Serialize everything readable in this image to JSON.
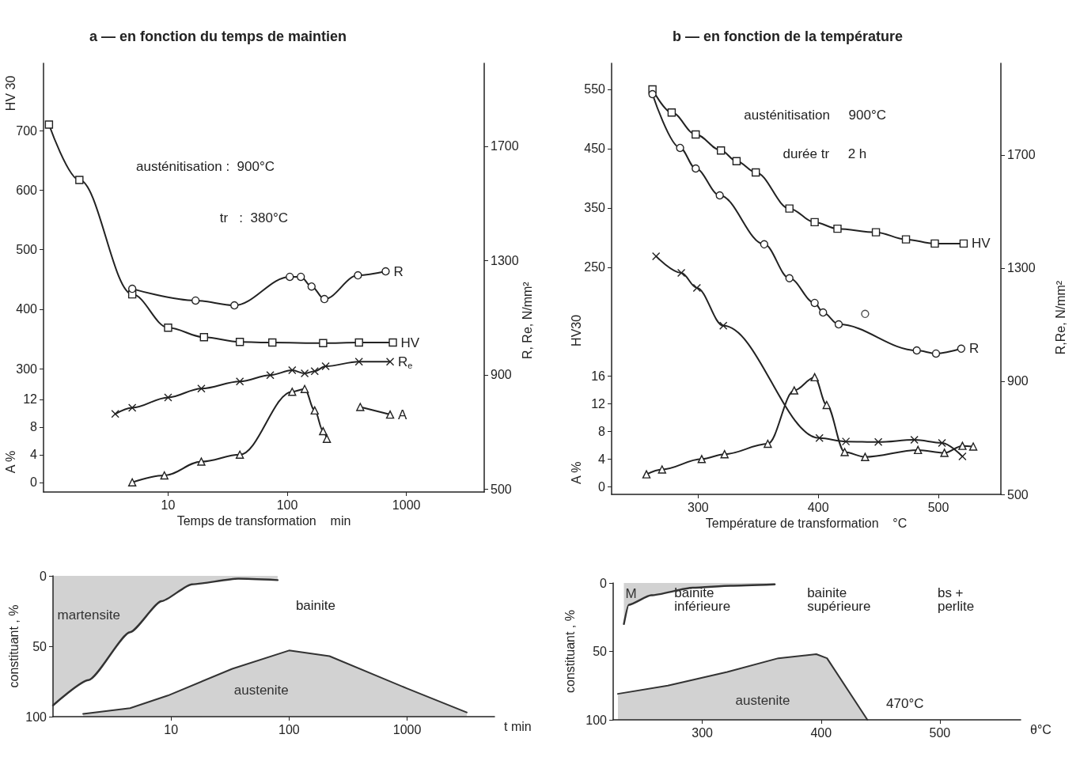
{
  "chart_data": [
    {
      "type": "line",
      "title": "a — en fonction du temps de maintien",
      "xlabel": "Temps de transformation    min",
      "ylabel": "HV 30",
      "y2label": "R, Re, N/mm²",
      "y3label": "A %",
      "annotations": [
        "austénitisation :  900°C",
        "tr   :  380°C"
      ],
      "log": "x",
      "xlim": [
        0.9,
        4500
      ],
      "xticks": [
        10,
        100,
        1000
      ],
      "ylim": [
        93,
        813
      ],
      "yticks": [
        300,
        400,
        500,
        600,
        700
      ],
      "y2lim": [
        490,
        1990
      ],
      "y2ticks": [
        500,
        900,
        1300,
        1700
      ],
      "y3lim": [
        -1.4,
        60.6
      ],
      "y3ticks": [
        0,
        4,
        8,
        12
      ],
      "series": [
        {
          "name": "HV",
          "color": "#222222",
          "marker": "square",
          "x": [
            1,
            1.8,
            5,
            10,
            20,
            40,
            75,
            200,
            400,
            770
          ],
          "values": [
            710,
            617,
            425,
            369,
            353,
            345,
            344,
            343,
            344,
            344
          ]
        },
        {
          "name": "R",
          "color": "#222222",
          "marker": "circle",
          "axis": "y2",
          "x": [
            5,
            17,
            36,
            105,
            130,
            160,
            205,
            392,
            670
          ],
          "values": [
            1201,
            1160,
            1143,
            1243,
            1243,
            1209,
            1165,
            1248,
            1262
          ]
        },
        {
          "name": "R$_{e}$",
          "color": "#222222",
          "marker": "cross",
          "axis": "y2",
          "x": [
            3.6,
            5,
            10,
            19,
            40,
            72,
            110,
            140,
            170,
            210,
            400,
            730
          ],
          "values": [
            763,
            785,
            821,
            852,
            877,
            899,
            916,
            905,
            913,
            930,
            946,
            946
          ]
        },
        {
          "name": "A",
          "color": "#222222",
          "marker": "triangle",
          "axis": "y3",
          "x": [
            5,
            9.3,
            19,
            40,
            110,
            140,
            170,
            200,
            215,
            300,
            410,
            730
          ],
          "values": [
            0,
            1,
            3,
            4,
            13.1,
            13.5,
            10.4,
            7.4,
            6.3,
            null,
            10.9,
            9.8
          ]
        }
      ]
    },
    {
      "type": "line",
      "title": "b — en fonction de la température",
      "xlabel": "Température de transformation    °C",
      "ylabel": "HV30",
      "y2label": "R,Re, N/mm²",
      "y3label": "A %",
      "annotations": [
        "austénitisation     900°C",
        "durée tr     2 h"
      ],
      "xlim": [
        228,
        552
      ],
      "xticks": [
        300,
        400,
        500
      ],
      "ylim": [
        -133,
        594
      ],
      "yticks": [
        250,
        350,
        450,
        550
      ],
      "y2lim": [
        500,
        2024
      ],
      "y2ticks": [
        500,
        900,
        1300,
        1700
      ],
      "y3lim": [
        -1.1,
        61.1
      ],
      "y3ticks": [
        0,
        4,
        8,
        12,
        16
      ],
      "series": [
        {
          "name": "HV",
          "color": "#222222",
          "marker": "square",
          "x": [
            262,
            278,
            298,
            319,
            332,
            348,
            376,
            397,
            416,
            448,
            473,
            497,
            521
          ],
          "values": [
            550,
            511,
            474,
            447,
            429,
            410,
            349,
            326,
            315,
            309,
            297,
            290,
            290
          ]
        },
        {
          "name": "R",
          "color": "#222222",
          "marker": "circle",
          "axis": "y2",
          "x": [
            262,
            285,
            298,
            318,
            355,
            376,
            397,
            404,
            417,
            482,
            498,
            519
          ],
          "values": [
            1915,
            1725,
            1652,
            1557,
            1384,
            1264,
            1177,
            1143,
            1101,
            1009,
            998,
            1015
          ]
        },
        {
          "type": "scatter",
          "color": "#222222",
          "marker": "circle",
          "axis": "y2",
          "x": [
            439
          ],
          "values": [
            1138
          ]
        },
        {
          "color": "#222222",
          "marker": "cross",
          "axis": "y2",
          "x": [
            265,
            286,
            299,
            321,
            401,
            423,
            450,
            480,
            503,
            520
          ],
          "values": [
            1342,
            1283,
            1230,
            1096,
            699,
            687,
            685,
            693,
            682,
            634
          ]
        },
        {
          "color": "#222222",
          "marker": "triangle",
          "axis": "y3",
          "x": [
            257,
            270,
            303,
            322,
            358,
            380,
            397,
            407,
            422,
            439,
            483,
            505,
            520,
            529
          ],
          "values": [
            1.8,
            2.5,
            4.0,
            4.7,
            6.2,
            13.9,
            15.8,
            11.8,
            5.0,
            4.3,
            5.3,
            4.9,
            5.9,
            5.8
          ]
        }
      ]
    },
    {
      "type": "area",
      "xlabel": "t min",
      "ylabel": "constituant , %",
      "annotations": [
        "bainite"
      ],
      "log": "x",
      "xlim": [
        1,
        5500
      ],
      "xticks": [
        10,
        100,
        1000
      ],
      "ylim": [
        100,
        0
      ],
      "yticks": [
        0,
        50,
        100
      ],
      "marker": "none",
      "series": [
        {
          "name": "martensite",
          "color": "#333333",
          "x": [
            1,
            2,
            4.5,
            8.3,
            15,
            37,
            80
          ],
          "values": [
            92,
            74,
            40,
            18,
            6,
            2,
            3
          ]
        },
        {
          "name": "austenite",
          "type": "line",
          "color": "#333333",
          "x": [
            1.8,
            4.5,
            9.4,
            33,
            100,
            220,
            1000,
            3200
          ],
          "values": [
            98,
            94,
            85,
            66,
            53,
            57,
            80,
            97
          ],
          "lower": [
            98,
            94,
            85,
            66,
            53,
            57,
            80,
            97
          ],
          "upper": [
            100,
            100,
            100,
            100,
            100,
            100,
            100,
            100
          ]
        }
      ]
    },
    {
      "type": "area",
      "xlabel": "θ°C",
      "ylabel": "constituant , %",
      "annotations": [
        "bainite inférieure",
        "bainite supérieure",
        "bs + perlite",
        "470°C"
      ],
      "xlim": [
        225,
        568
      ],
      "xticks": [
        300,
        400,
        500
      ],
      "ylim": [
        100,
        0
      ],
      "yticks": [
        0,
        50,
        100
      ],
      "marker": "none",
      "series": [
        {
          "name": "M",
          "color": "#333333",
          "x": [
            234,
            238,
            257,
            292,
            324,
            361
          ],
          "values": [
            30,
            16,
            9,
            3.5,
            2,
            1
          ]
        },
        {
          "name": "austenite",
          "type": "line",
          "color": "#333333",
          "x": [
            229,
            271,
            321,
            364,
            396,
            405,
            439
          ],
          "values": [
            81,
            75,
            65,
            55,
            52,
            55,
            100
          ],
          "lower": [
            81,
            75,
            65,
            55,
            52,
            55,
            100
          ],
          "upper": [
            100,
            100,
            100,
            100,
            100,
            100,
            100
          ]
        }
      ]
    }
  ]
}
